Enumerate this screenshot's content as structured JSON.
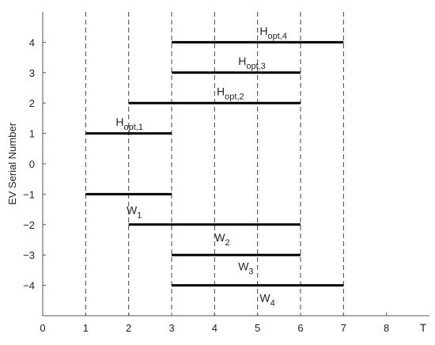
{
  "chart_data": {
    "type": "line",
    "title": "",
    "xlabel": "T",
    "ylabel": "EV Serial Number",
    "xlim": [
      0,
      9
    ],
    "ylim": [
      -5,
      5
    ],
    "xticks": [
      0,
      1,
      2,
      3,
      4,
      5,
      6,
      7,
      8
    ],
    "yticks": [
      -4,
      -3,
      -2,
      -1,
      0,
      1,
      2,
      3,
      4
    ],
    "ytick_labels": [
      "−4",
      "−3",
      "−2",
      "−1",
      "0",
      "1",
      "2",
      "3",
      "4"
    ],
    "vertical_dashed_lines_x": [
      1,
      2,
      3,
      4,
      5,
      6,
      7
    ],
    "grid": false,
    "segments": [
      {
        "id": "h4",
        "y": 4,
        "x_start": 3,
        "x_end": 7,
        "label_main": "H",
        "label_sub": "opt,4",
        "label_pos": [
          5.05,
          4.25
        ]
      },
      {
        "id": "h3",
        "y": 3,
        "x_start": 3,
        "x_end": 6,
        "label_main": "H",
        "label_sub": "opt,3",
        "label_pos": [
          4.55,
          3.25
        ]
      },
      {
        "id": "h2",
        "y": 2,
        "x_start": 2,
        "x_end": 6,
        "label_main": "H",
        "label_sub": "opt,2",
        "label_pos": [
          4.05,
          2.25
        ]
      },
      {
        "id": "h1",
        "y": 1,
        "x_start": 1,
        "x_end": 3,
        "label_main": "H",
        "label_sub": "opt,1",
        "label_pos": [
          1.7,
          1.25
        ]
      },
      {
        "id": "w1",
        "y": -1,
        "x_start": 1,
        "x_end": 3,
        "label_main": "W",
        "label_sub": "1",
        "label_pos": [
          1.95,
          -1.65
        ]
      },
      {
        "id": "w2",
        "y": -2,
        "x_start": 2,
        "x_end": 6,
        "label_main": "W",
        "label_sub": "2",
        "label_pos": [
          4.0,
          -2.55
        ]
      },
      {
        "id": "w3",
        "y": -3,
        "x_start": 3,
        "x_end": 6,
        "label_main": "W",
        "label_sub": "3",
        "label_pos": [
          4.55,
          -3.5
        ]
      },
      {
        "id": "w4",
        "y": -4,
        "x_start": 3,
        "x_end": 7,
        "label_main": "W",
        "label_sub": "4",
        "label_pos": [
          5.05,
          -4.55
        ]
      }
    ],
    "colors": {
      "segment": "#000000",
      "dashed": "#444444",
      "axis": "#555555"
    }
  }
}
